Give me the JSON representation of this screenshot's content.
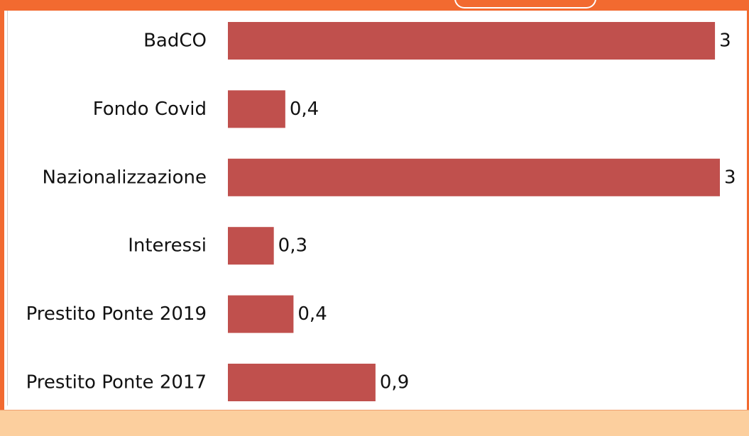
{
  "chart_data": {
    "type": "bar",
    "orientation": "horizontal",
    "categories": [
      "BadCO",
      "Fondo Covid",
      "Nazionalizzazione",
      "Interessi",
      "Prestito Ponte 2019",
      "Prestito Ponte 2017"
    ],
    "values": [
      2.97,
      0.35,
      3.0,
      0.28,
      0.4,
      0.9
    ],
    "data_labels": [
      "3",
      "0,4",
      "3",
      "0,3",
      "0,4",
      "0,9"
    ],
    "bar_color": "#c0504d",
    "grid": false,
    "legend": "none"
  },
  "colors": {
    "frame": "#f26a30",
    "footer": "#fccf9e"
  }
}
